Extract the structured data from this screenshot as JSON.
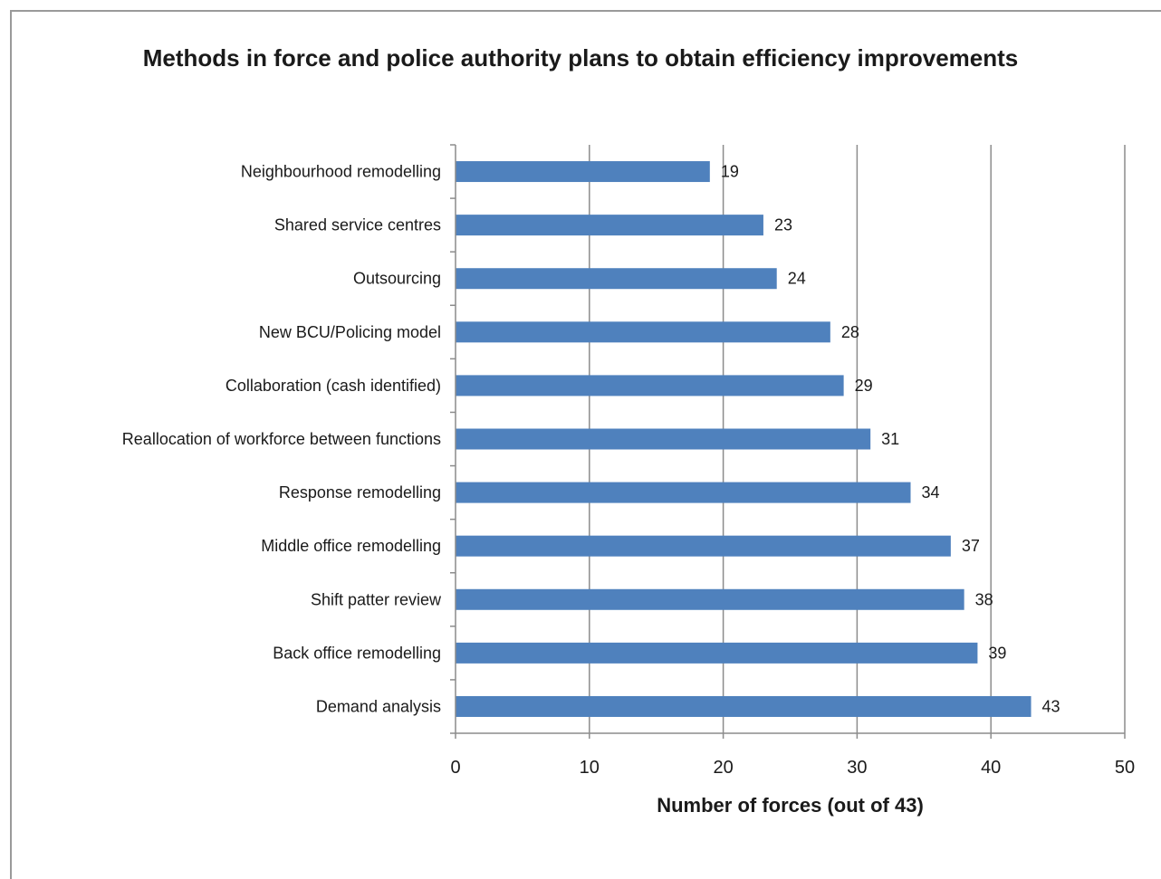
{
  "chart_data": {
    "type": "bar",
    "orientation": "horizontal",
    "title": "Methods in force and police authority plans to obtain efficiency improvements",
    "xlabel": "Number of forces (out of 43)",
    "ylabel": "",
    "xlim": [
      0,
      50
    ],
    "x_ticks": [
      0,
      10,
      20,
      30,
      40,
      50
    ],
    "grid": "vertical",
    "bar_color": "#4f81bd",
    "categories": [
      "Neighbourhood remodelling",
      "Shared service centres",
      "Outsourcing",
      "New BCU/Policing model",
      "Collaboration (cash identified)",
      "Reallocation of workforce between functions",
      "Response remodelling",
      "Middle office remodelling",
      "Shift patter review",
      "Back office remodelling",
      "Demand analysis"
    ],
    "values": [
      19,
      23,
      24,
      28,
      29,
      31,
      34,
      37,
      38,
      39,
      43
    ]
  }
}
